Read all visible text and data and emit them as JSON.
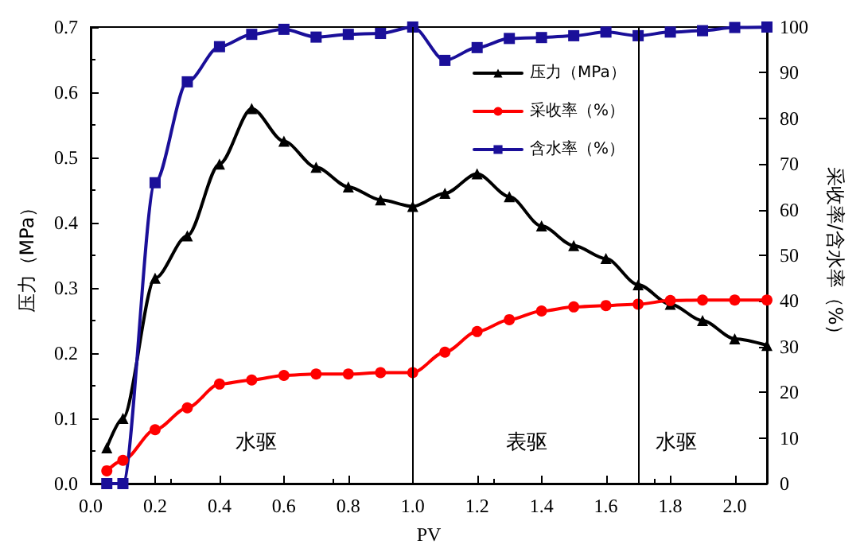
{
  "chart_data": {
    "type": "line",
    "xlabel": "PV",
    "ylabel": "压力（MPa）",
    "y2label": "采收率/含水率（%）",
    "x": [
      0.05,
      0.1,
      0.2,
      0.3,
      0.4,
      0.5,
      0.6,
      0.7,
      0.8,
      0.9,
      1.0,
      1.1,
      1.2,
      1.3,
      1.4,
      1.5,
      1.6,
      1.7,
      1.8,
      1.9,
      2.0,
      2.1
    ],
    "series": [
      {
        "name": "压力（MPa）",
        "color": "#000000",
        "marker": "triangle",
        "values": [
          0.055,
          0.1,
          0.315,
          0.38,
          0.49,
          0.575,
          0.525,
          0.485,
          0.455,
          0.435,
          0.425,
          0.445,
          0.475,
          0.44,
          0.395,
          0.365,
          0.345,
          0.305,
          0.275,
          0.25,
          0.222,
          0.212
        ]
      },
      {
        "name": "采收率（%）",
        "color": "#ff0000",
        "marker": "circle",
        "axis": "y2",
        "values": [
          2.8,
          5.1,
          11.8,
          16.6,
          21.8,
          22.7,
          23.7,
          24.0,
          24.0,
          24.3,
          24.3,
          28.8,
          33.3,
          35.9,
          37.8,
          38.7,
          39.0,
          39.3,
          40.1,
          40.2,
          40.2,
          40.2
        ]
      },
      {
        "name": "含水率（%）",
        "color": "#1a0f99",
        "marker": "square",
        "axis": "y2",
        "values": [
          0,
          0,
          65.9,
          88,
          95.7,
          98.4,
          99.5,
          97.8,
          98.4,
          98.6,
          100,
          92.7,
          95.5,
          97.5,
          97.7,
          98.1,
          98.9,
          98.1,
          98.9,
          99.2,
          99.9,
          100
        ]
      }
    ],
    "xlim": [
      0,
      2.1
    ],
    "xticks": [
      {
        "value": 0,
        "label": "0.0"
      },
      {
        "value": 0.2,
        "label": "0.2"
      },
      {
        "value": 0.4,
        "label": "0.4"
      },
      {
        "value": 0.6,
        "label": "0.6"
      },
      {
        "value": 0.8,
        "label": "0.8"
      },
      {
        "value": 1,
        "label": "1.0"
      },
      {
        "value": 1.2,
        "label": "1.2"
      },
      {
        "value": 1.4,
        "label": "1.4"
      },
      {
        "value": 1.6,
        "label": "1.6"
      },
      {
        "value": 1.8,
        "label": "1.8"
      },
      {
        "value": 2,
        "label": "2.0"
      }
    ],
    "ylim": [
      0,
      0.7
    ],
    "yticks": [
      {
        "value": 0,
        "label": "0.0"
      },
      {
        "value": 0.1,
        "label": "0.1"
      },
      {
        "value": 0.2,
        "label": "0.2"
      },
      {
        "value": 0.3,
        "label": "0.3"
      },
      {
        "value": 0.4,
        "label": "0.4"
      },
      {
        "value": 0.5,
        "label": "0.5"
      },
      {
        "value": 0.6,
        "label": "0.6"
      },
      {
        "value": 0.7,
        "label": "0.7"
      }
    ],
    "y2lim": [
      0,
      100
    ],
    "y2ticks": [
      0,
      10,
      20,
      30,
      40,
      50,
      60,
      70,
      80,
      90,
      100
    ],
    "ref_lines": [
      {
        "axis": "x",
        "value": 1.0,
        "color": "#000000"
      },
      {
        "axis": "x",
        "value": 1.7,
        "color": "#000000"
      }
    ],
    "annotations": [
      "水驱",
      "表驱",
      "水驱"
    ],
    "legend": "top right",
    "grid": false,
    "line_style": "solid"
  }
}
